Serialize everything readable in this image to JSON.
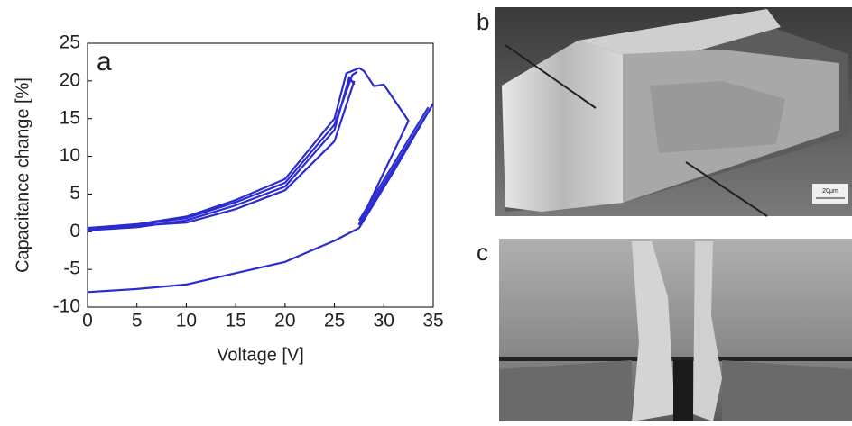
{
  "chart_data": {
    "type": "line",
    "annotation": "a",
    "xlabel": "Voltage [V]",
    "ylabel": "Capacitance change [%]",
    "xlim": [
      0,
      35
    ],
    "xticks": [
      0,
      5,
      10,
      15,
      20,
      25,
      30,
      35
    ],
    "ylim": [
      -10,
      25
    ],
    "yticks": [
      -10,
      -5,
      0,
      5,
      10,
      15,
      20,
      25
    ],
    "grid": false,
    "series": [
      {
        "color": "#2b2bd0",
        "x": [
          0,
          5,
          10,
          15,
          20,
          25,
          27.5,
          31,
          35,
          null,
          0,
          5,
          10,
          15,
          20,
          25,
          26.5,
          27,
          null,
          0,
          5,
          10,
          15,
          20,
          25,
          26.2,
          27.5,
          28,
          29,
          30,
          32.5,
          27.5,
          35,
          null,
          0,
          5,
          10,
          15,
          20,
          25,
          27,
          null,
          0,
          5,
          10,
          15,
          20,
          25,
          26.8,
          27.3,
          null,
          27.5,
          34.5
        ],
        "values": [
          -8,
          -7.6,
          -7,
          -5.5,
          -4,
          -1.2,
          0.5,
          8,
          17,
          null,
          0.2,
          0.6,
          1.5,
          3.5,
          6,
          13.5,
          20.5,
          19.5,
          null,
          0.5,
          1,
          2,
          4.2,
          7,
          15,
          21,
          21.7,
          21.3,
          19.3,
          19.5,
          14.7,
          1,
          17,
          null,
          0.3,
          0.8,
          1.2,
          3,
          5.5,
          12,
          20,
          null,
          0.4,
          0.9,
          1.8,
          3.9,
          6.5,
          14.2,
          20.8,
          21.2,
          null,
          1.5,
          16.5
        ]
      }
    ]
  },
  "panels": [
    {
      "label": "b",
      "scale_bar": "20μm"
    },
    {
      "label": "c"
    }
  ]
}
